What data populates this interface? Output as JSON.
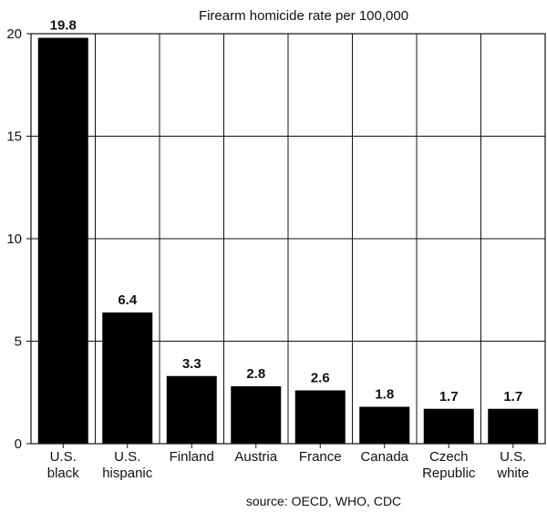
{
  "chart_data": {
    "type": "bar",
    "title": "Firearm homicide rate per 100,000",
    "categories": [
      [
        "U.S.",
        "black"
      ],
      [
        "U.S.",
        "hispanic"
      ],
      [
        "Finland"
      ],
      [
        "Austria"
      ],
      [
        "France"
      ],
      [
        "Canada"
      ],
      [
        "Czech",
        "Republic"
      ],
      [
        "U.S.",
        "white"
      ]
    ],
    "values": [
      19.8,
      6.4,
      3.3,
      2.8,
      2.6,
      1.8,
      1.7,
      1.7
    ],
    "data_labels": [
      "19.8",
      "6.4",
      "3.3",
      "2.8",
      "2.6",
      "1.8",
      "1.7",
      "1.7"
    ],
    "ylim": [
      0,
      20
    ],
    "yticks": [
      0,
      5,
      10,
      15,
      20
    ],
    "ytick_labels": [
      "0",
      "5",
      "10",
      "15",
      "20"
    ],
    "xlabel": "",
    "ylabel": "",
    "grid": true,
    "bar_color": "#000000",
    "grid_color": "#111111",
    "source": "source: OECD, WHO, CDC"
  }
}
